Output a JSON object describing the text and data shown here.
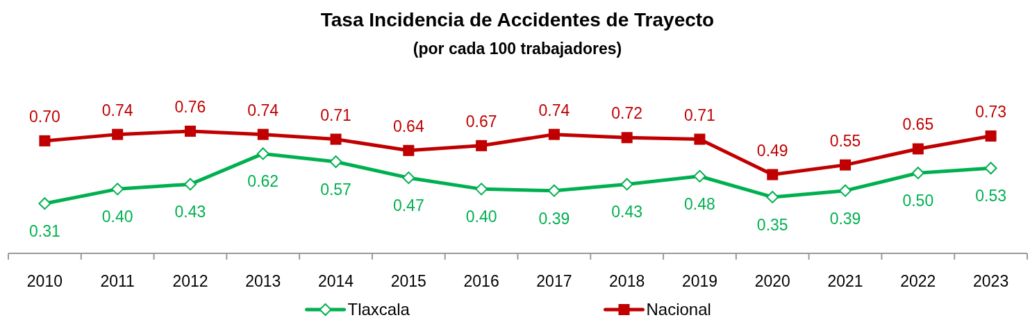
{
  "chart_data": {
    "type": "line",
    "title": "Tasa Incidencia de Accidentes de Trayecto",
    "subtitle": "(por cada 100 trabajadores)",
    "categories": [
      "2010",
      "2011",
      "2012",
      "2013",
      "2014",
      "2015",
      "2016",
      "2017",
      "2018",
      "2019",
      "2020",
      "2021",
      "2022",
      "2023"
    ],
    "series": [
      {
        "name": "Tlaxcala",
        "color": "#00b050",
        "marker": "diamond",
        "values": [
          0.31,
          0.4,
          0.43,
          0.62,
          0.57,
          0.47,
          0.4,
          0.39,
          0.43,
          0.48,
          0.35,
          0.39,
          0.5,
          0.53
        ],
        "value_labels": [
          "0.31",
          "0.40",
          "0.43",
          "0.62",
          "0.57",
          "0.47",
          "0.40",
          "0.39",
          "0.43",
          "0.48",
          "0.35",
          "0.39",
          "0.50",
          "0.53"
        ]
      },
      {
        "name": "Nacional",
        "color": "#c00000",
        "marker": "square",
        "values": [
          0.7,
          0.74,
          0.76,
          0.74,
          0.71,
          0.64,
          0.67,
          0.74,
          0.72,
          0.71,
          0.49,
          0.55,
          0.65,
          0.73
        ],
        "value_labels": [
          "0.70",
          "0.74",
          "0.76",
          "0.74",
          "0.71",
          "0.64",
          "0.67",
          "0.74",
          "0.72",
          "0.71",
          "0.49",
          "0.55",
          "0.65",
          "0.73"
        ]
      }
    ],
    "tick_labels": "x",
    "legend": "bottom",
    "line_style": "solid"
  }
}
